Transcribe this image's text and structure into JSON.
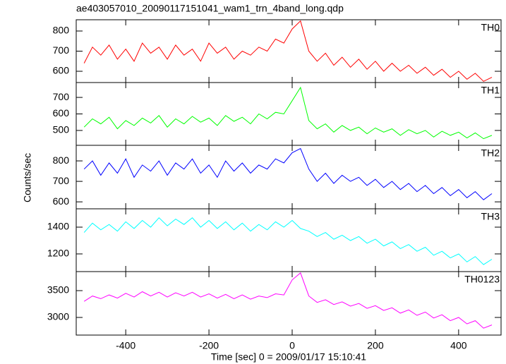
{
  "chart_data": {
    "type": "line",
    "title": "ae403057010_20090117151041_wam1_trn_4band_long.qdp",
    "x_label": "Time [sec] 0 = 2009/01/17 15:10:41",
    "y_label": "Counts/sec",
    "xlim": [
      -519,
      502
    ],
    "xticks": [
      -400,
      -200,
      0,
      200,
      400
    ],
    "x": [
      -500,
      -480,
      -460,
      -440,
      -420,
      -400,
      -380,
      -360,
      -340,
      -320,
      -300,
      -280,
      -260,
      -240,
      -220,
      -200,
      -180,
      -160,
      -140,
      -120,
      -100,
      -80,
      -60,
      -40,
      -20,
      0,
      20,
      40,
      60,
      80,
      100,
      120,
      140,
      160,
      180,
      200,
      220,
      240,
      260,
      280,
      300,
      320,
      340,
      360,
      380,
      400,
      420,
      440,
      460,
      480
    ],
    "panels": [
      {
        "name": "TH0",
        "color": "#ff0000",
        "ylim": [
          544,
          856
        ],
        "yticks": [
          600,
          700,
          800
        ],
        "values": [
          640,
          720,
          680,
          730,
          660,
          710,
          650,
          740,
          690,
          720,
          660,
          730,
          680,
          710,
          650,
          740,
          690,
          720,
          660,
          700,
          680,
          720,
          700,
          760,
          740,
          810,
          850,
          700,
          650,
          690,
          630,
          670,
          620,
          660,
          610,
          650,
          600,
          640,
          600,
          630,
          590,
          620,
          580,
          610,
          570,
          600,
          560,
          590,
          550,
          570
        ]
      },
      {
        "name": "TH1",
        "color": "#00ff00",
        "ylim": [
          410,
          790
        ],
        "yticks": [
          500,
          600,
          700
        ],
        "values": [
          520,
          570,
          540,
          580,
          510,
          560,
          530,
          575,
          545,
          590,
          520,
          570,
          540,
          585,
          550,
          575,
          530,
          590,
          555,
          580,
          540,
          600,
          570,
          610,
          600,
          680,
          760,
          560,
          510,
          540,
          490,
          530,
          500,
          520,
          480,
          515,
          490,
          510,
          470,
          505,
          480,
          500,
          460,
          495,
          470,
          490,
          455,
          485,
          450,
          470
        ]
      },
      {
        "name": "TH2",
        "color": "#0000ff",
        "ylim": [
          566,
          876
        ],
        "yticks": [
          600,
          700,
          800
        ],
        "values": [
          760,
          800,
          730,
          790,
          740,
          810,
          720,
          780,
          750,
          800,
          730,
          790,
          760,
          810,
          740,
          780,
          720,
          800,
          750,
          790,
          740,
          780,
          760,
          810,
          790,
          840,
          860,
          760,
          700,
          740,
          690,
          730,
          700,
          720,
          680,
          710,
          670,
          700,
          660,
          690,
          650,
          680,
          640,
          670,
          630,
          660,
          620,
          650,
          610,
          640
        ]
      },
      {
        "name": "TH3",
        "color": "#00ffff",
        "ylim": [
          1068,
          1537
        ],
        "yticks": [
          1200,
          1400
        ],
        "values": [
          1360,
          1430,
          1380,
          1420,
          1370,
          1440,
          1390,
          1450,
          1400,
          1470,
          1410,
          1460,
          1420,
          1470,
          1400,
          1450,
          1390,
          1440,
          1380,
          1430,
          1370,
          1420,
          1380,
          1440,
          1400,
          1450,
          1390,
          1370,
          1330,
          1360,
          1310,
          1340,
          1300,
          1330,
          1280,
          1310,
          1260,
          1290,
          1240,
          1270,
          1220,
          1250,
          1190,
          1220,
          1170,
          1200,
          1140,
          1180,
          1120,
          1160
        ]
      },
      {
        "name": "TH0123",
        "color": "#ff00ff",
        "ylim": [
          2671,
          3855
        ],
        "yticks": [
          3000,
          3500
        ],
        "values": [
          3300,
          3400,
          3350,
          3420,
          3360,
          3450,
          3380,
          3480,
          3400,
          3470,
          3380,
          3460,
          3400,
          3470,
          3380,
          3440,
          3360,
          3430,
          3350,
          3420,
          3340,
          3400,
          3370,
          3440,
          3420,
          3700,
          3830,
          3400,
          3280,
          3330,
          3240,
          3290,
          3210,
          3260,
          3170,
          3220,
          3130,
          3180,
          3080,
          3140,
          3040,
          3100,
          2990,
          3050,
          2940,
          3000,
          2880,
          2940,
          2800,
          2860
        ]
      }
    ]
  }
}
